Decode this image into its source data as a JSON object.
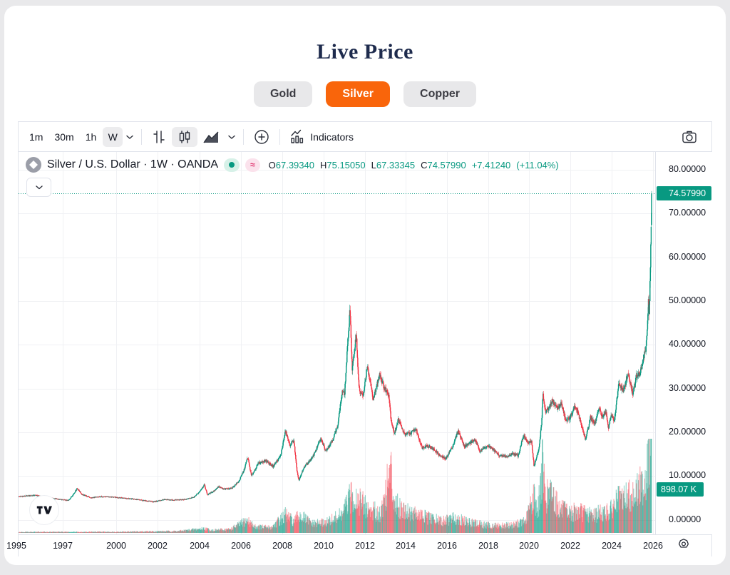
{
  "page": {
    "title": "Live Price"
  },
  "colors": {
    "accent_orange": "#f9650b",
    "up": "#089981",
    "down": "#F23645",
    "badge_bg": "#089981",
    "pill_green_bg": "#d7f1e8",
    "pill_green_dot": "#089981",
    "pill_pink_bg": "#fbe2ec",
    "pill_pink_fg": "#e0356e",
    "grid": "#f0f1f4"
  },
  "tabs": [
    {
      "label": "Gold",
      "active": false
    },
    {
      "label": "Silver",
      "active": true
    },
    {
      "label": "Copper",
      "active": false
    }
  ],
  "toolbar": {
    "intervals": [
      {
        "label": "1m",
        "selected": false
      },
      {
        "label": "30m",
        "selected": false
      },
      {
        "label": "1h",
        "selected": false
      },
      {
        "label": "W",
        "selected": true
      }
    ],
    "indicators_label": "Indicators"
  },
  "symbol": {
    "title": "Silver / U.S. Dollar · 1W · OANDA",
    "approx_symbol": "≈",
    "ohlc_items": [
      {
        "label": "O",
        "value": "67.39340"
      },
      {
        "label": "H",
        "value": "75.15050"
      },
      {
        "label": "L",
        "value": "67.33345"
      },
      {
        "label": "C",
        "value": "74.57990"
      }
    ],
    "change": "+7.41240",
    "change_pct": "(+11.04%)"
  },
  "price_axis": {
    "ticks": [
      {
        "label": "80.00000",
        "value": 80
      },
      {
        "label": "70.00000",
        "value": 70
      },
      {
        "label": "60.00000",
        "value": 60
      },
      {
        "label": "50.00000",
        "value": 50
      },
      {
        "label": "40.00000",
        "value": 40
      },
      {
        "label": "30.00000",
        "value": 30
      },
      {
        "label": "20.00000",
        "value": 20
      },
      {
        "label": "10.00000",
        "value": 10
      },
      {
        "label": "0.00000",
        "value": 0
      }
    ],
    "price_badge": "74.57990",
    "volume_badge": "898.07 K"
  },
  "time_axis": {
    "ticks": [
      {
        "label": "1995",
        "x": 22
      },
      {
        "label": "1997",
        "x": 87
      },
      {
        "label": "2000",
        "x": 162
      },
      {
        "label": "2002",
        "x": 220
      },
      {
        "label": "2004",
        "x": 279
      },
      {
        "label": "2006",
        "x": 337
      },
      {
        "label": "2008",
        "x": 395
      },
      {
        "label": "2010",
        "x": 453
      },
      {
        "label": "2012",
        "x": 511
      },
      {
        "label": "2014",
        "x": 568
      },
      {
        "label": "2016",
        "x": 626
      },
      {
        "label": "2018",
        "x": 684
      },
      {
        "label": "2020",
        "x": 741
      },
      {
        "label": "2022",
        "x": 799
      },
      {
        "label": "2024",
        "x": 857
      },
      {
        "label": "2026",
        "x": 915
      }
    ]
  },
  "chart_data": {
    "type": "candlestick",
    "title": "Silver / U.S. Dollar weekly with volume",
    "timeframe": "1W",
    "x_range_years": [
      1995.28,
      2025.9
    ],
    "y_range": [
      0,
      80
    ],
    "grid": true,
    "current_price": 74.5799,
    "last_bar": {
      "open": 67.3934,
      "high": 75.1505,
      "low": 67.33345,
      "close": 74.5799
    },
    "price_anchors": [
      [
        1995.0,
        5.2
      ],
      [
        1995.6,
        5.4
      ],
      [
        1996.1,
        5.6
      ],
      [
        1996.6,
        5.1
      ],
      [
        1997.2,
        4.7
      ],
      [
        1997.7,
        4.4
      ],
      [
        1997.95,
        5.9
      ],
      [
        1998.12,
        7.2
      ],
      [
        1998.35,
        5.8
      ],
      [
        1998.8,
        5.0
      ],
      [
        1999.3,
        5.3
      ],
      [
        1999.8,
        5.2
      ],
      [
        2000.3,
        5.0
      ],
      [
        2000.9,
        4.7
      ],
      [
        2001.4,
        4.35
      ],
      [
        2001.85,
        4.1
      ],
      [
        2002.3,
        4.6
      ],
      [
        2002.8,
        4.5
      ],
      [
        2003.3,
        4.6
      ],
      [
        2003.75,
        5.1
      ],
      [
        2004.0,
        6.2
      ],
      [
        2004.27,
        8.0
      ],
      [
        2004.42,
        5.7
      ],
      [
        2004.75,
        6.6
      ],
      [
        2004.95,
        7.6
      ],
      [
        2005.2,
        7.0
      ],
      [
        2005.6,
        7.2
      ],
      [
        2005.95,
        8.8
      ],
      [
        2006.2,
        11.5
      ],
      [
        2006.37,
        14.3
      ],
      [
        2006.55,
        10.0
      ],
      [
        2006.9,
        13.0
      ],
      [
        2007.25,
        13.5
      ],
      [
        2007.6,
        12.2
      ],
      [
        2007.95,
        14.5
      ],
      [
        2008.2,
        20.3
      ],
      [
        2008.4,
        17.0
      ],
      [
        2008.6,
        18.2
      ],
      [
        2008.75,
        11.0
      ],
      [
        2008.85,
        9.0
      ],
      [
        2009.1,
        12.0
      ],
      [
        2009.5,
        14.2
      ],
      [
        2009.9,
        18.5
      ],
      [
        2010.15,
        15.8
      ],
      [
        2010.45,
        18.0
      ],
      [
        2010.7,
        21.0
      ],
      [
        2010.95,
        29.5
      ],
      [
        2011.05,
        28.5
      ],
      [
        2011.23,
        42.0
      ],
      [
        2011.32,
        48.5
      ],
      [
        2011.42,
        34.0
      ],
      [
        2011.62,
        42.5
      ],
      [
        2011.75,
        30.0
      ],
      [
        2011.95,
        28.0
      ],
      [
        2012.15,
        35.0
      ],
      [
        2012.45,
        27.5
      ],
      [
        2012.75,
        33.5
      ],
      [
        2012.95,
        30.5
      ],
      [
        2013.2,
        28.5
      ],
      [
        2013.3,
        23.0
      ],
      [
        2013.47,
        19.5
      ],
      [
        2013.65,
        23.0
      ],
      [
        2013.95,
        19.5
      ],
      [
        2014.25,
        19.8
      ],
      [
        2014.5,
        20.8
      ],
      [
        2014.8,
        16.5
      ],
      [
        2015.05,
        17.0
      ],
      [
        2015.4,
        16.0
      ],
      [
        2015.7,
        14.5
      ],
      [
        2015.95,
        13.9
      ],
      [
        2016.3,
        17.0
      ],
      [
        2016.55,
        20.3
      ],
      [
        2016.85,
        16.8
      ],
      [
        2017.1,
        17.5
      ],
      [
        2017.35,
        18.3
      ],
      [
        2017.6,
        15.8
      ],
      [
        2017.95,
        16.8
      ],
      [
        2018.2,
        16.3
      ],
      [
        2018.55,
        14.6
      ],
      [
        2018.95,
        14.5
      ],
      [
        2019.2,
        15.2
      ],
      [
        2019.45,
        14.6
      ],
      [
        2019.7,
        19.3
      ],
      [
        2019.95,
        17.5
      ],
      [
        2020.1,
        17.9
      ],
      [
        2020.22,
        12.2
      ],
      [
        2020.45,
        16.0
      ],
      [
        2020.58,
        22.0
      ],
      [
        2020.65,
        28.5
      ],
      [
        2020.78,
        24.5
      ],
      [
        2020.95,
        25.5
      ],
      [
        2021.1,
        27.2
      ],
      [
        2021.35,
        25.5
      ],
      [
        2021.55,
        26.5
      ],
      [
        2021.75,
        22.8
      ],
      [
        2021.95,
        23.2
      ],
      [
        2022.2,
        25.8
      ],
      [
        2022.35,
        24.5
      ],
      [
        2022.55,
        21.0
      ],
      [
        2022.72,
        18.2
      ],
      [
        2022.95,
        23.5
      ],
      [
        2023.15,
        21.8
      ],
      [
        2023.35,
        25.3
      ],
      [
        2023.55,
        23.5
      ],
      [
        2023.7,
        24.5
      ],
      [
        2023.82,
        21.0
      ],
      [
        2023.95,
        24.2
      ],
      [
        2024.1,
        22.4
      ],
      [
        2024.32,
        31.0
      ],
      [
        2024.55,
        29.5
      ],
      [
        2024.78,
        33.5
      ],
      [
        2024.9,
        30.5
      ],
      [
        2025.0,
        29.0
      ],
      [
        2025.15,
        32.5
      ],
      [
        2025.35,
        33.5
      ],
      [
        2025.5,
        36.5
      ],
      [
        2025.62,
        39.0
      ],
      [
        2025.7,
        44.0
      ],
      [
        2025.76,
        50.5
      ],
      [
        2025.79,
        47.0
      ],
      [
        2025.82,
        52.0
      ],
      [
        2025.845,
        58.0
      ],
      [
        2025.865,
        62.0
      ],
      [
        2025.88,
        67.4
      ],
      [
        2025.895,
        74.6
      ]
    ],
    "volume_anchors": [
      [
        1995,
        0.01
      ],
      [
        2000,
        0.012
      ],
      [
        2003,
        0.02
      ],
      [
        2004.3,
        0.05
      ],
      [
        2004.6,
        0.03
      ],
      [
        2005.5,
        0.04
      ],
      [
        2006.35,
        0.14
      ],
      [
        2006.7,
        0.07
      ],
      [
        2007.5,
        0.06
      ],
      [
        2008.2,
        0.2
      ],
      [
        2008.6,
        0.12
      ],
      [
        2008.85,
        0.2
      ],
      [
        2009.5,
        0.1
      ],
      [
        2010.2,
        0.12
      ],
      [
        2010.9,
        0.2
      ],
      [
        2011.3,
        0.38
      ],
      [
        2011.5,
        0.42
      ],
      [
        2011.8,
        0.35
      ],
      [
        2012.2,
        0.26
      ],
      [
        2012.8,
        0.22
      ],
      [
        2013.28,
        0.7
      ],
      [
        2013.35,
        0.5
      ],
      [
        2013.6,
        0.3
      ],
      [
        2014,
        0.26
      ],
      [
        2014.6,
        0.2
      ],
      [
        2015.2,
        0.16
      ],
      [
        2015.8,
        0.13
      ],
      [
        2016.4,
        0.17
      ],
      [
        2017,
        0.12
      ],
      [
        2017.8,
        0.09
      ],
      [
        2018.5,
        0.08
      ],
      [
        2019.2,
        0.09
      ],
      [
        2019.8,
        0.13
      ],
      [
        2020.2,
        0.42
      ],
      [
        2020.4,
        0.25
      ],
      [
        2020.63,
        0.8
      ],
      [
        2020.75,
        0.4
      ],
      [
        2021.1,
        0.45
      ],
      [
        2021.4,
        0.28
      ],
      [
        2021.9,
        0.22
      ],
      [
        2022.4,
        0.24
      ],
      [
        2022.9,
        0.2
      ],
      [
        2023.4,
        0.22
      ],
      [
        2023.9,
        0.24
      ],
      [
        2024.2,
        0.35
      ],
      [
        2024.5,
        0.38
      ],
      [
        2024.8,
        0.42
      ],
      [
        2025.1,
        0.45
      ],
      [
        2025.3,
        0.5
      ],
      [
        2025.5,
        0.55
      ],
      [
        2025.65,
        0.65
      ],
      [
        2025.75,
        0.85
      ],
      [
        2025.82,
        0.95
      ],
      [
        2025.89,
        1.0
      ]
    ]
  }
}
